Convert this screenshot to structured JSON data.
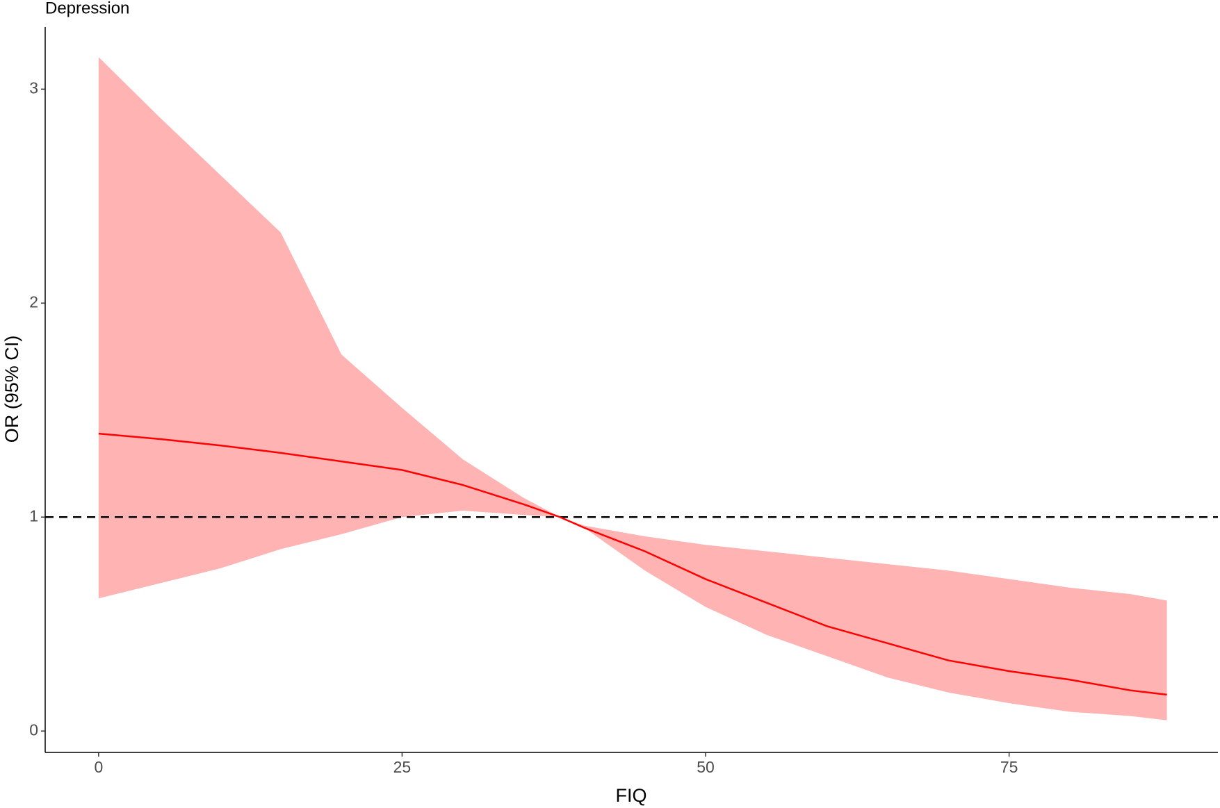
{
  "chart_data": {
    "type": "ribbon-line",
    "title": "Depression",
    "x_label": "FIQ",
    "y_label": "OR (95% CI)",
    "x": [
      0,
      5,
      10,
      15,
      20,
      25,
      30,
      35,
      38,
      40,
      45,
      50,
      55,
      60,
      65,
      70,
      75,
      80,
      85,
      88
    ],
    "line": {
      "color": "#ff0000",
      "values": [
        1.39,
        1.365,
        1.335,
        1.3,
        1.26,
        1.22,
        1.15,
        1.06,
        1.0,
        0.95,
        0.84,
        0.71,
        0.6,
        0.49,
        0.41,
        0.33,
        0.28,
        0.24,
        0.19,
        0.17
      ]
    },
    "band": {
      "color": "#ffb3b3",
      "upper": [
        3.15,
        2.87,
        2.6,
        2.33,
        1.76,
        1.51,
        1.27,
        1.09,
        1.0,
        0.96,
        0.91,
        0.87,
        0.84,
        0.81,
        0.78,
        0.75,
        0.71,
        0.67,
        0.64,
        0.61
      ],
      "lower": [
        0.62,
        0.69,
        0.76,
        0.85,
        0.92,
        1.0,
        1.03,
        1.01,
        1.0,
        0.95,
        0.75,
        0.58,
        0.45,
        0.35,
        0.25,
        0.18,
        0.13,
        0.09,
        0.07,
        0.05
      ]
    },
    "reference_line": 1,
    "xlim": [
      -4.4,
      92.2
    ],
    "xticks": [
      0,
      25,
      50,
      75
    ],
    "ylim": [
      -0.1,
      3.29
    ],
    "yticks": [
      0,
      1,
      2,
      3
    ]
  }
}
